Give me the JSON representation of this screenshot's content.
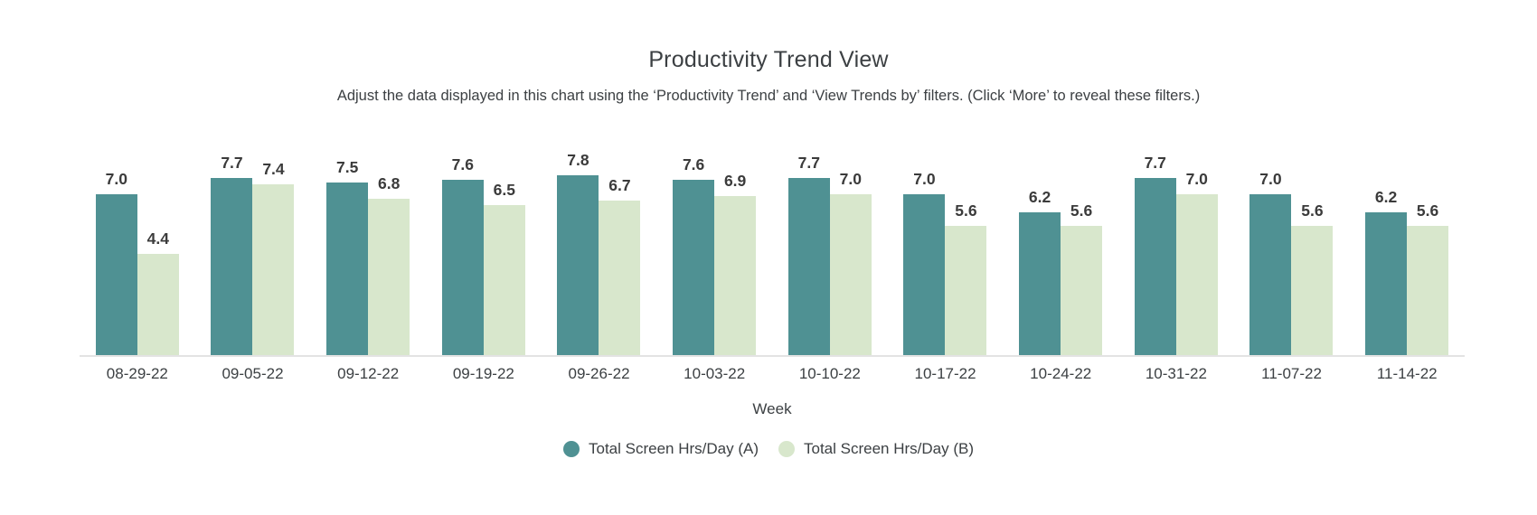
{
  "chart": {
    "title": "Productivity Trend View",
    "subtitle": "Adjust the data displayed in this chart using the ‘Productivity Trend’ and ‘View Trends by’ filters. (Click ‘More’ to reveal these filters.)",
    "xlabel": "Week"
  },
  "colors": {
    "series_a": "#4F9193",
    "series_b": "#D8E7CC",
    "axis_line": "#e3e3e3",
    "text": "#3c4043",
    "value_label": "#3b3b3b",
    "background": "#ffffff"
  },
  "chart_data": {
    "type": "bar",
    "title": "Productivity Trend View",
    "subtitle": "Adjust the data displayed in this chart using the ‘Productivity Trend’ and ‘View Trends by’ filters. (Click ‘More’ to reveal these filters.)",
    "categories": [
      "08-29-22",
      "09-05-22",
      "09-12-22",
      "09-19-22",
      "09-26-22",
      "10-03-22",
      "10-10-22",
      "10-17-22",
      "10-24-22",
      "10-31-22",
      "11-07-22",
      "11-14-22"
    ],
    "series": [
      {
        "name": "Total Screen Hrs/Day (A)",
        "color": "#4F9193",
        "values": [
          7.0,
          7.7,
          7.5,
          7.6,
          7.8,
          7.6,
          7.7,
          7.0,
          6.2,
          7.7,
          7.0,
          6.2
        ]
      },
      {
        "name": "Total Screen Hrs/Day (B)",
        "color": "#D8E7CC",
        "values": [
          4.4,
          7.4,
          6.8,
          6.5,
          6.7,
          6.9,
          7.0,
          5.6,
          5.6,
          7.0,
          5.6,
          5.6
        ]
      }
    ],
    "xlabel": "Week",
    "ylabel": "",
    "ylim": [
      0,
      8.5
    ],
    "value_labels": true,
    "value_label_format": "0.0",
    "grid": false,
    "legend_position": "bottom"
  }
}
